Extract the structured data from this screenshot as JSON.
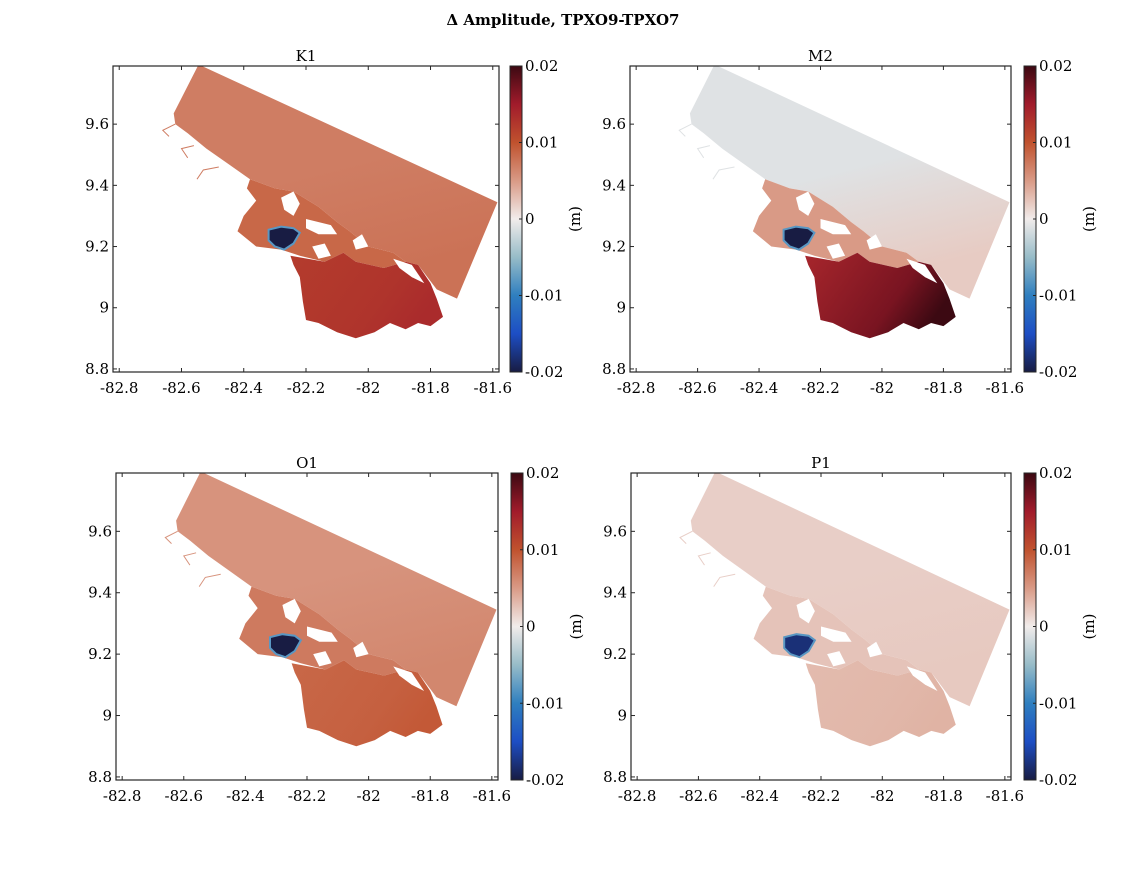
{
  "chart_data": {
    "type": "heatmap",
    "title": "Δ Amplitude, TPXO9-TPXO7",
    "colormap": "balance (diverging blue-white-red)",
    "colorbar": {
      "label": "(m)",
      "clim": [
        -0.02,
        0.02
      ],
      "ticks": [
        -0.02,
        -0.01,
        0,
        0.01,
        0.02
      ],
      "tick_labels": [
        "-0.02",
        "-0.01",
        "0",
        "0.01",
        "0.02"
      ],
      "stops": [
        {
          "v": -0.02,
          "color": "#181c43"
        },
        {
          "v": -0.015,
          "color": "#1d4ec4"
        },
        {
          "v": -0.01,
          "color": "#2f7fbf"
        },
        {
          "v": -0.005,
          "color": "#97bcc8"
        },
        {
          "v": 0.0,
          "color": "#f1eceb"
        },
        {
          "v": 0.005,
          "color": "#d99a86"
        },
        {
          "v": 0.01,
          "color": "#c0522e"
        },
        {
          "v": 0.015,
          "color": "#a11b2b"
        },
        {
          "v": 0.02,
          "color": "#3c0912"
        }
      ]
    },
    "xlim": [
      -82.82,
      -81.58
    ],
    "ylim": [
      8.79,
      9.79
    ],
    "xticks": [
      -82.8,
      -82.6,
      -82.4,
      -82.2,
      -82,
      -81.8,
      -81.6
    ],
    "xtick_labels": [
      "-82.8",
      "-82.6",
      "-82.4",
      "-82.2",
      "-82",
      "-81.8",
      "-81.6"
    ],
    "yticks": [
      8.8,
      9,
      9.2,
      9.4,
      9.6
    ],
    "ytick_labels": [
      "8.8",
      "9",
      "9.2",
      "9.4",
      "9.6"
    ],
    "xlabel": "",
    "ylabel": "",
    "grid": false,
    "panels": [
      {
        "name": "K1",
        "title": "K1",
        "offshore_value": 0.007,
        "bay_north_value": 0.0085,
        "bay_south_value": 0.012,
        "bay_east_value": 0.0135,
        "lagoon_value": -0.02
      },
      {
        "name": "M2",
        "title": "M2",
        "offshore_value": -0.001,
        "bay_north_value": 0.005,
        "bay_south_value": 0.014,
        "bay_east_value": 0.02,
        "lagoon_value": -0.02
      },
      {
        "name": "O1",
        "title": "O1",
        "offshore_value": 0.0055,
        "bay_north_value": 0.0072,
        "bay_south_value": 0.0085,
        "bay_east_value": 0.0095,
        "lagoon_value": -0.02
      },
      {
        "name": "P1",
        "title": "P1",
        "offshore_value": 0.0018,
        "bay_north_value": 0.0025,
        "bay_south_value": 0.003,
        "bay_east_value": 0.0035,
        "lagoon_value": -0.018
      }
    ]
  }
}
